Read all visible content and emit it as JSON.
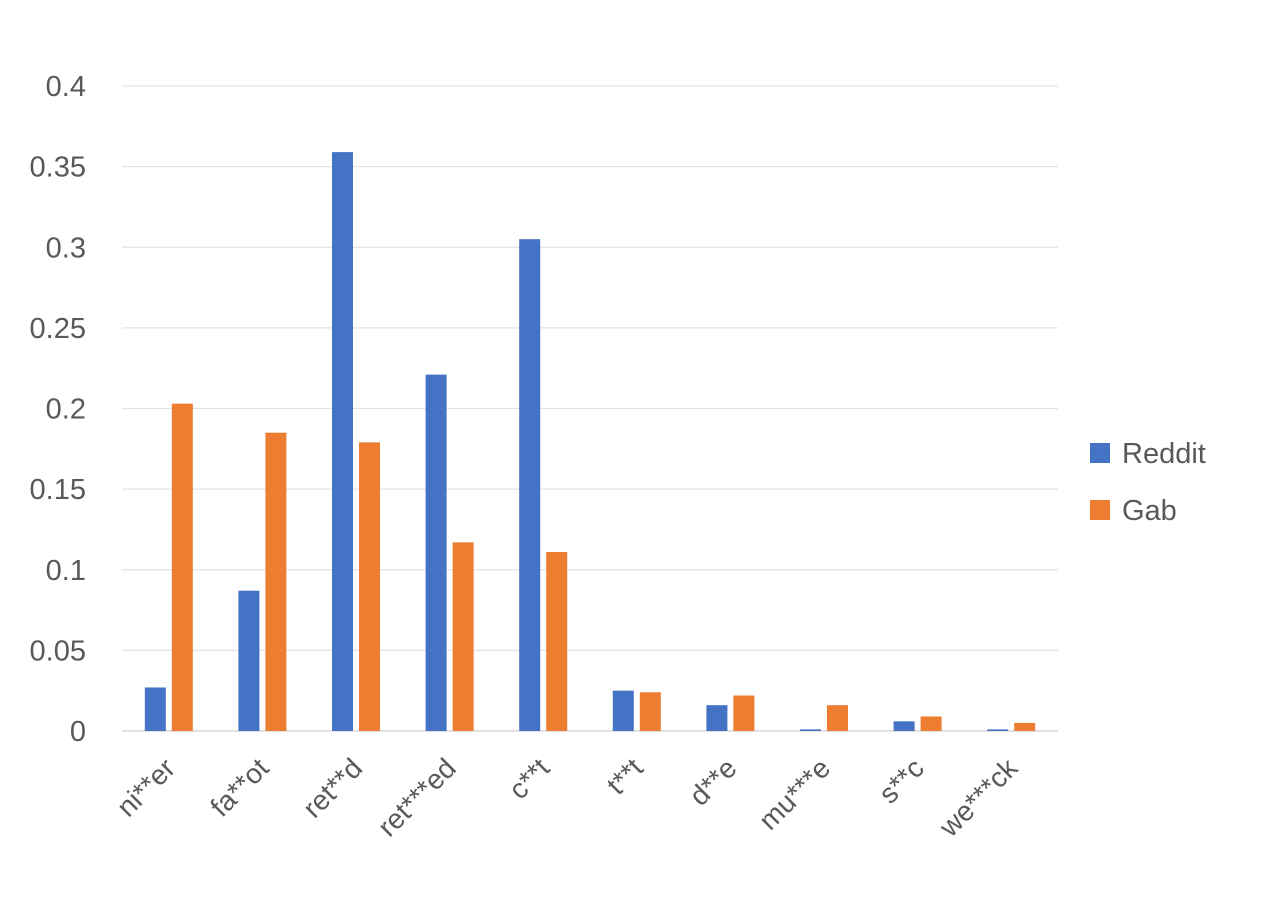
{
  "chart_data": {
    "type": "bar",
    "title": "",
    "xlabel": "",
    "ylabel": "",
    "categories": [
      "ni**er",
      "fa**ot",
      "ret**d",
      "ret***ed",
      "c**t",
      "t**t",
      "d**e",
      "mu***e",
      "s**c",
      "we***ck"
    ],
    "series": [
      {
        "name": "Reddit",
        "color": "#4472C4",
        "values": [
          0.027,
          0.087,
          0.359,
          0.221,
          0.305,
          0.025,
          0.016,
          0.001,
          0.006,
          0.001
        ]
      },
      {
        "name": "Gab",
        "color": "#ED7D31",
        "values": [
          0.203,
          0.185,
          0.179,
          0.117,
          0.111,
          0.024,
          0.022,
          0.016,
          0.009,
          0.005
        ]
      }
    ],
    "ylim": [
      0,
      0.4
    ],
    "yticks": [
      "0",
      "0.05",
      "0.1",
      "0.15",
      "0.2",
      "0.25",
      "0.3",
      "0.35",
      "0.4"
    ],
    "grid": true,
    "legend_position": "right"
  }
}
